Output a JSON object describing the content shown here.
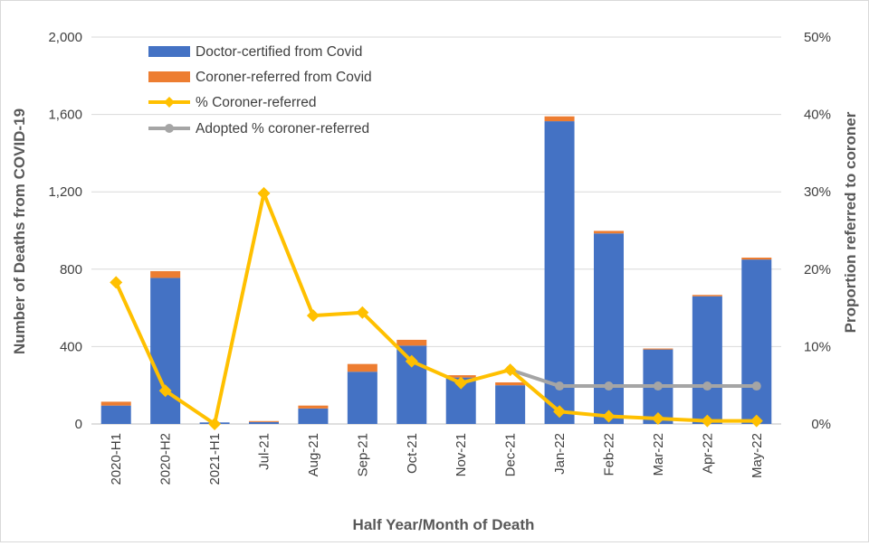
{
  "chart_data": {
    "type": "bar",
    "categories": [
      "2020-H1",
      "2020-H2",
      "2021-H1",
      "Jul-21",
      "Aug-21",
      "Sep-21",
      "Oct-21",
      "Nov-21",
      "Dec-21",
      "Jan-22",
      "Feb-22",
      "Mar-22",
      "Apr-22",
      "May-22"
    ],
    "series": [
      {
        "name": "Doctor-certified from Covid",
        "type": "bar",
        "axis": "left",
        "color": "#4472c4",
        "values": [
          95,
          755,
          8,
          10,
          80,
          270,
          405,
          240,
          200,
          1565,
          985,
          385,
          660,
          850
        ]
      },
      {
        "name": "Coroner-referred from Covid",
        "type": "bar",
        "axis": "left",
        "color": "#ed7d31",
        "values": [
          20,
          35,
          0,
          5,
          15,
          40,
          30,
          12,
          15,
          25,
          13,
          5,
          7,
          10
        ]
      },
      {
        "name": "% Coroner-referred",
        "type": "line",
        "axis": "right",
        "color": "#ffc000",
        "values": [
          18.3,
          4.3,
          0,
          29.8,
          14.0,
          14.4,
          8.1,
          5.3,
          7.0,
          1.6,
          1.0,
          0.7,
          0.4,
          0.4
        ]
      },
      {
        "name": "Adopted % coroner-referred",
        "type": "line",
        "axis": "right",
        "color": "#a5a5a5",
        "values": [
          null,
          null,
          null,
          null,
          null,
          null,
          null,
          null,
          7.0,
          4.9,
          4.9,
          4.9,
          4.9,
          4.9
        ]
      }
    ],
    "xlabel": "Half Year/Month of Death",
    "ylabel": "Number of Deaths from COVID-19",
    "y2label": "Proportion referred to coroner",
    "ylim": [
      0,
      2000
    ],
    "y2lim": [
      0,
      50
    ],
    "yticks": [
      "0",
      "400",
      "800",
      "1,200",
      "1,600",
      "2,000"
    ],
    "y2ticks": [
      "0%",
      "10%",
      "20%",
      "30%",
      "40%",
      "50%"
    ],
    "grid": true,
    "legend_position": "top-left"
  }
}
